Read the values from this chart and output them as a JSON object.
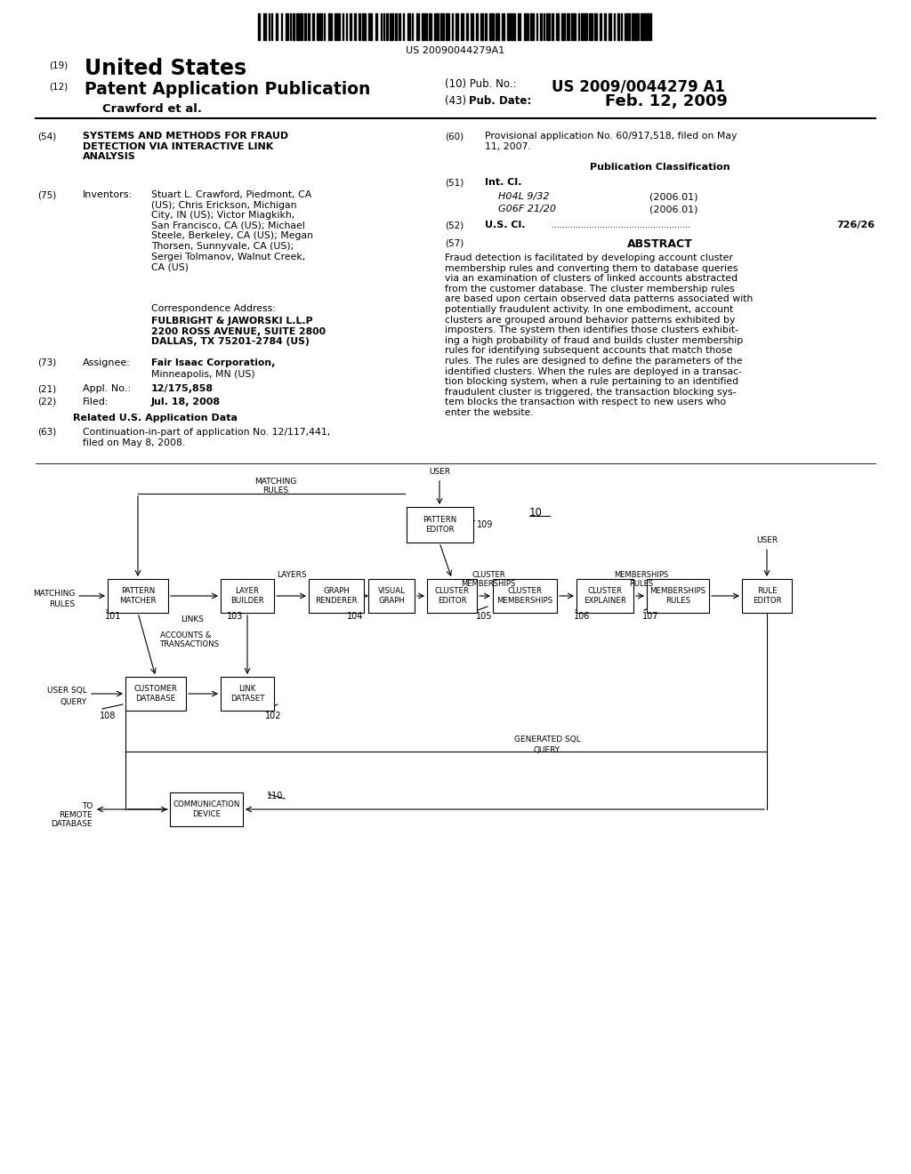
{
  "bg_color": "#ffffff",
  "barcode_text": "US 20090044279A1",
  "header": {
    "num19": "(19)",
    "united_states": "United States",
    "num12": "(12)",
    "patent_app": "Patent Application Publication",
    "crawford": "Crawford et al.",
    "num10": "(10) Pub. No.:",
    "pub_no_val": "US 2009/0044279 A1",
    "num43": "(43) Pub. Date:",
    "pub_date_val": "Feb. 12, 2009"
  },
  "sec54_num": "(54)",
  "sec54_text": "SYSTEMS AND METHODS FOR FRAUD\nDETECTION VIA INTERACTIVE LINK\nANALYSIS",
  "sec75_num": "(75)",
  "sec75_label": "Inventors:",
  "sec75_bold": "Stuart L. Crawford",
  "sec75_text": ", Piedmont, CA\n(US); ",
  "inv_text": "Stuart L. Crawford, Piedmont, CA\n(US); Chris Erickson, Michigan\nCity, IN (US); Victor Miagkikh,\nSan Francisco, CA (US); Michael\nSteele, Berkeley, CA (US); Megan\nThorsen, Sunnyvale, CA (US);\nSergei Tolmanov, Walnut Creek,\nCA (US)",
  "corr_label": "Correspondence Address:",
  "corr_bold": "FULBRIGHT & JAWORSKI L.L.P\n2200 ROSS AVENUE, SUITE 2800\nDALLAS, TX 75201-2784 (US)",
  "sec73_num": "(73)",
  "sec73_label": "Assignee:",
  "sec73_bold": "Fair Isaac Corporation,",
  "sec73_text": "\nMinneapolis, MN (US)",
  "sec21_num": "(21)",
  "sec21_label": "Appl. No.:",
  "sec21_val": "12/175,858",
  "sec22_num": "(22)",
  "sec22_label": "Filed:",
  "sec22_val": "Jul. 18, 2008",
  "rel_label": "Related U.S. Application Data",
  "sec63_num": "(63)",
  "sec63_text": "Continuation-in-part of application No. 12/117,441,\nfiled on May 8, 2008.",
  "sec60_num": "(60)",
  "sec60_text": "Provisional application No. 60/917,518, filed on May\n11, 2007.",
  "pub_class_label": "Publication Classification",
  "sec51_num": "(51)",
  "sec51_label": "Int. Cl.",
  "h04l": "H04L 9/32",
  "h04l_date": "(2006.01)",
  "g06f": "G06F 21/20",
  "g06f_date": "(2006.01)",
  "sec52_num": "(52)",
  "sec52_label": "U.S. Cl.",
  "sec52_val": "726/26",
  "sec57_num": "(57)",
  "abstract_label": "ABSTRACT",
  "abstract_text": "Fraud detection is facilitated by developing account cluster\nmembership rules and converting them to database queries\nvia an examination of clusters of linked accounts abstracted\nfrom the customer database. The cluster membership rules\nare based upon certain observed data patterns associated with\npotentially fraudulent activity. In one embodiment, account\nclusters are grouped around behavior patterns exhibited by\nimposters. The system then identifies those clusters exhibit-\ning a high probability of fraud and builds cluster membership\nrules for identifying subsequent accounts that match those\nrules. The rules are designed to define the parameters of the\nidentified clusters. When the rules are deployed in a transac-\ntion blocking system, when a rule pertaining to an identified\nfraudulent cluster is triggered, the transaction blocking sys-\ntem blocks the transaction with respect to new users who\nenter the website."
}
